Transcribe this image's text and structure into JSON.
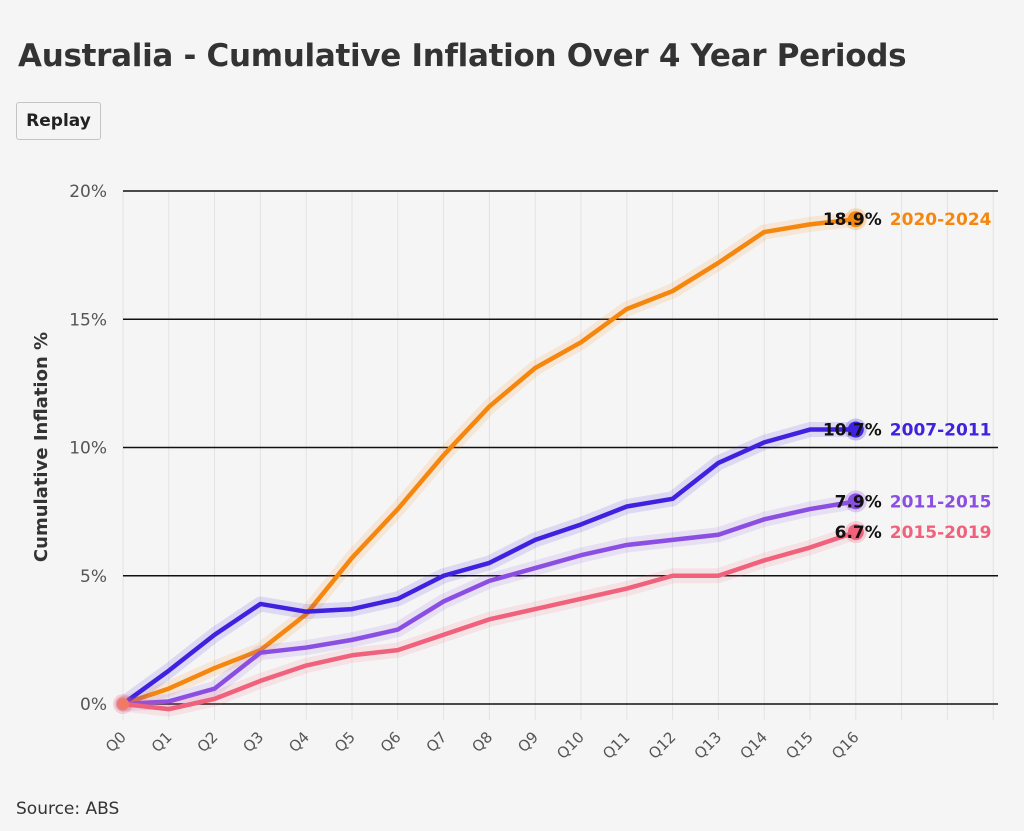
{
  "title": "Australia - Cumulative Inflation Over 4 Year Periods",
  "replay_label": "Replay",
  "source": "Source: ABS",
  "chart_data": {
    "type": "line",
    "ylabel": "Cumulative Inflation %",
    "xlabel": "",
    "ylim": [
      0,
      20
    ],
    "yticks": [
      0,
      5,
      10,
      15,
      20
    ],
    "ytick_labels": [
      "0%",
      "5%",
      "10%",
      "15%",
      "20%"
    ],
    "categories": [
      "Q0",
      "Q1",
      "Q2",
      "Q3",
      "Q4",
      "Q5",
      "Q6",
      "Q7",
      "Q8",
      "Q9",
      "Q10",
      "Q11",
      "Q12",
      "Q13",
      "Q14",
      "Q15",
      "Q16"
    ],
    "grid": true,
    "series": [
      {
        "name": "2020-2024",
        "color": "#f5870f",
        "end_label": "18.9%",
        "values": [
          0,
          0.6,
          1.4,
          2.1,
          3.5,
          5.7,
          7.6,
          9.7,
          11.6,
          13.1,
          14.1,
          15.4,
          16.1,
          17.2,
          18.4,
          18.7,
          18.9
        ]
      },
      {
        "name": "2007-2011",
        "color": "#3f22e0",
        "end_label": "10.7%",
        "values": [
          0,
          1.3,
          2.7,
          3.9,
          3.6,
          3.7,
          4.1,
          5.0,
          5.5,
          6.4,
          7.0,
          7.7,
          8.0,
          9.4,
          10.2,
          10.7,
          10.7
        ]
      },
      {
        "name": "2011-2015",
        "color": "#8b4ee3",
        "end_label": "7.9%",
        "values": [
          0,
          0.1,
          0.6,
          2.0,
          2.2,
          2.5,
          2.9,
          4.0,
          4.8,
          5.3,
          5.8,
          6.2,
          6.4,
          6.6,
          7.2,
          7.6,
          7.9
        ]
      },
      {
        "name": "2015-2019",
        "color": "#f0617c",
        "end_label": "6.7%",
        "values": [
          0,
          -0.2,
          0.2,
          0.9,
          1.5,
          1.9,
          2.1,
          2.7,
          3.3,
          3.7,
          4.1,
          4.5,
          5.0,
          5.0,
          5.6,
          6.1,
          6.7
        ]
      }
    ]
  }
}
